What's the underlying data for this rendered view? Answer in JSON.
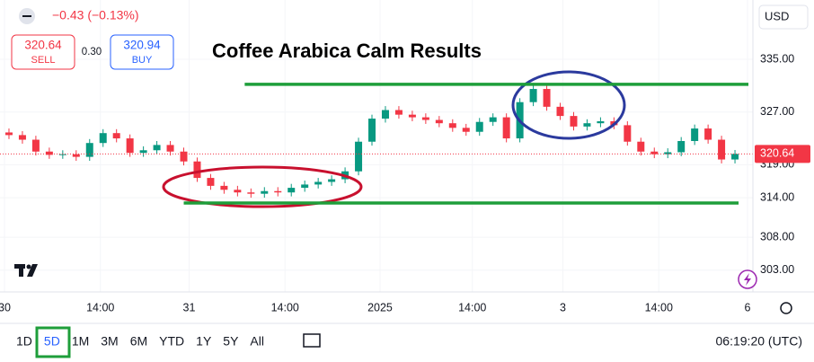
{
  "chart_data": {
    "type": "candlestick",
    "title": "Coffee Arabica Calm Results",
    "change": "−0.43 (−0.13%)",
    "sell_price": "320.64",
    "sell_label": "SELL",
    "spread": "0.30",
    "buy_price": "320.94",
    "buy_label": "BUY",
    "currency": "USD",
    "last_price": 320.64,
    "timeframes": [
      "1D",
      "5D",
      "1M",
      "3M",
      "6M",
      "YTD",
      "1Y",
      "5Y",
      "All"
    ],
    "selected_timeframe": 1,
    "clock": "06:19:20 (UTC)",
    "up_color": "#089981",
    "down_color": "#f23645",
    "level_color": "#1e9e3a",
    "xlim": [
      0,
      84
    ],
    "ylim": [
      299.7,
      344.0
    ],
    "xticks": [
      {
        "value": 0.5,
        "label": "30"
      },
      {
        "value": 11.2,
        "label": "14:00"
      },
      {
        "value": 21.1,
        "label": "31"
      },
      {
        "value": 31.8,
        "label": "14:00"
      },
      {
        "value": 42.4,
        "label": "2025"
      },
      {
        "value": 52.7,
        "label": "14:00"
      },
      {
        "value": 62.8,
        "label": "3"
      },
      {
        "value": 73.5,
        "label": "14:00"
      },
      {
        "value": 83.4,
        "label": "6"
      }
    ],
    "yticks": [
      {
        "value": 335,
        "label": "335.00"
      },
      {
        "value": 327,
        "label": "327.00"
      },
      {
        "value": 319,
        "label": "319.00"
      },
      {
        "value": 314,
        "label": "314.00"
      },
      {
        "value": 308,
        "label": "308.00"
      },
      {
        "value": 303,
        "label": "303.00"
      }
    ],
    "levels": [
      {
        "value": 331.2,
        "x": [
          27.3,
          83.5
        ]
      },
      {
        "value": 313.2,
        "x": [
          20.5,
          82.4
        ]
      }
    ],
    "x": [
      1,
      2.5,
      4,
      5.5,
      7,
      8.5,
      10,
      11.5,
      13,
      14.5,
      16,
      17.5,
      19,
      20.5,
      22,
      23.5,
      25,
      26.5,
      28,
      29.5,
      31,
      32.5,
      34,
      35.5,
      37,
      38.5,
      40,
      41.5,
      43,
      44.5,
      46,
      47.5,
      49,
      50.5,
      52,
      53.5,
      55,
      56.5,
      58,
      59.5,
      61,
      62.5,
      64,
      65.5,
      67,
      68.5,
      70,
      71.5,
      73,
      74.5,
      76,
      77.5,
      79,
      80.5,
      82
    ],
    "open": [
      323.9,
      323.5,
      322.8,
      321.0,
      320.5,
      320.6,
      320.2,
      322.3,
      323.8,
      323.0,
      320.8,
      321.2,
      322.0,
      321.0,
      319.5,
      317.0,
      315.8,
      315.2,
      314.8,
      314.6,
      315.0,
      314.8,
      315.5,
      316.0,
      316.4,
      316.8,
      318.0,
      322.5,
      326.0,
      327.3,
      326.6,
      326.2,
      325.8,
      325.3,
      324.6,
      324.0,
      325.5,
      326.2,
      323.0,
      328.5,
      330.5,
      327.8,
      326.4,
      324.8,
      325.3,
      325.6,
      325.0,
      322.5,
      321.0,
      320.6,
      320.9,
      322.6,
      324.5,
      322.8,
      319.8
    ],
    "high": [
      324.5,
      324.1,
      323.4,
      321.6,
      321.2,
      321.2,
      322.9,
      324.4,
      324.4,
      323.6,
      321.8,
      322.6,
      322.6,
      321.6,
      320.1,
      317.6,
      316.4,
      315.8,
      315.4,
      315.6,
      315.6,
      316.1,
      316.6,
      317.0,
      317.4,
      318.6,
      323.1,
      326.6,
      327.9,
      327.9,
      327.2,
      326.8,
      326.4,
      325.9,
      325.2,
      326.1,
      326.8,
      326.8,
      329.1,
      331.1,
      331.1,
      328.4,
      327.0,
      325.9,
      326.2,
      326.2,
      325.6,
      323.1,
      321.6,
      321.5,
      323.2,
      325.1,
      325.1,
      323.4,
      321.24
    ],
    "low": [
      322.9,
      322.2,
      320.4,
      319.9,
      319.9,
      319.6,
      319.6,
      321.7,
      322.4,
      320.2,
      320.2,
      320.6,
      320.4,
      318.9,
      316.4,
      315.2,
      314.6,
      314.2,
      314.0,
      314.0,
      314.2,
      314.2,
      314.9,
      315.4,
      315.8,
      316.2,
      317.4,
      321.9,
      325.4,
      326.0,
      325.6,
      325.2,
      324.7,
      324.0,
      323.4,
      323.4,
      324.9,
      322.4,
      322.4,
      327.9,
      327.2,
      325.8,
      324.2,
      324.2,
      324.7,
      324.4,
      321.9,
      320.4,
      320.0,
      320.0,
      320.3,
      322.0,
      322.2,
      319.2,
      319.2
    ],
    "close": [
      323.5,
      322.8,
      321.0,
      320.5,
      320.6,
      320.2,
      322.3,
      323.8,
      323.0,
      320.8,
      321.2,
      322.0,
      321.0,
      319.5,
      317.0,
      315.8,
      315.2,
      314.8,
      314.6,
      315.0,
      314.8,
      315.5,
      316.0,
      316.4,
      316.8,
      318.0,
      322.5,
      326.0,
      327.3,
      326.6,
      326.2,
      325.8,
      325.3,
      324.6,
      324.0,
      325.5,
      326.2,
      323.0,
      328.5,
      330.5,
      327.8,
      326.4,
      324.8,
      325.3,
      325.6,
      325.0,
      322.5,
      321.0,
      320.6,
      320.9,
      322.6,
      324.5,
      322.8,
      319.8,
      320.64
    ]
  }
}
